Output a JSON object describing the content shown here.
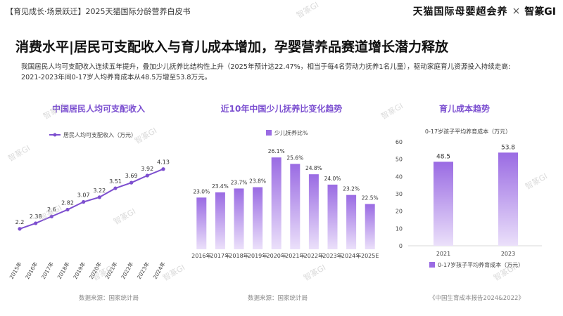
{
  "header": {
    "breadcrumb": "【育见成长·场景跃迁】2025天猫国际分龄营养白皮书",
    "brand_tmall": "天猫国际母婴超会养",
    "brand_sep": "×",
    "brand_gi": "智篆GI"
  },
  "headline": "消费水平|居民可支配收入与育儿成本增加，孕婴营养品赛道增长潜力释放",
  "summary": {
    "line1": "我国居民人均可支配收入连续五年提升，叠加少儿抚养比结构性上升（2025年预计达22.47%，相当于每4名劳动力抚养1名儿童），驱动家庭育儿资源投入持续走高:",
    "line2": "2021-2023年间0-17岁人均养育成本从48.5万增至53.8万元。"
  },
  "watermark": "智篆GI",
  "colors": {
    "accent": "#7b4fd0",
    "line": "#7d4fcf",
    "bar_top": "#9a6be3",
    "bar_bottom": "#ebe0fa"
  },
  "chart_data": [
    {
      "type": "line",
      "title": "中国居民人均可支配收入",
      "legend": "居民人均可支配收入（万元）",
      "categories": [
        "2015年",
        "2016年",
        "2017年",
        "2018年",
        "2019年",
        "2020年",
        "2021年",
        "2022年",
        "2023年",
        "2024年"
      ],
      "values": [
        2.2,
        2.38,
        2.6,
        2.82,
        3.07,
        3.22,
        3.51,
        3.69,
        3.92,
        4.13
      ],
      "value_labels": [
        "2.2",
        "2.38",
        "2.6",
        "2.82",
        "3.07",
        "3.22",
        "3.51",
        "3.69",
        "3.92",
        "4.13"
      ],
      "source": "数据来源：国家统计局"
    },
    {
      "type": "bar",
      "title": "近10年中国少儿抚养比变化趋势",
      "legend": "少儿抚养比%",
      "categories": [
        "2016年",
        "2017年",
        "2018年",
        "2019年",
        "2020年",
        "2021年",
        "2022年",
        "2023年",
        "2024年",
        "2025E"
      ],
      "values": [
        23.0,
        23.4,
        23.7,
        23.8,
        26.1,
        25.6,
        24.8,
        24.0,
        23.2,
        22.5
      ],
      "value_labels": [
        "23.0%",
        "23.4%",
        "23.7%",
        "23.8%",
        "26.1%",
        "25.6%",
        "24.8%",
        "24.0%",
        "23.2%",
        "22.5%"
      ],
      "source": "数据来源：国家统计局"
    },
    {
      "type": "bar",
      "title": "育儿成本趋势",
      "ylabel": "0-17岁孩子平均养育成本（万元）",
      "legend": "0-17岁孩子平均养育成本（万元）",
      "categories": [
        "2021",
        "2023"
      ],
      "values": [
        48.5,
        53.8
      ],
      "value_labels": [
        "48.5",
        "53.8"
      ],
      "yticks": [
        "0",
        "10",
        "20",
        "30",
        "40",
        "50",
        "60"
      ],
      "ylim": [
        0,
        60
      ],
      "source": "《中国生育成本报告2024&2022》"
    }
  ]
}
